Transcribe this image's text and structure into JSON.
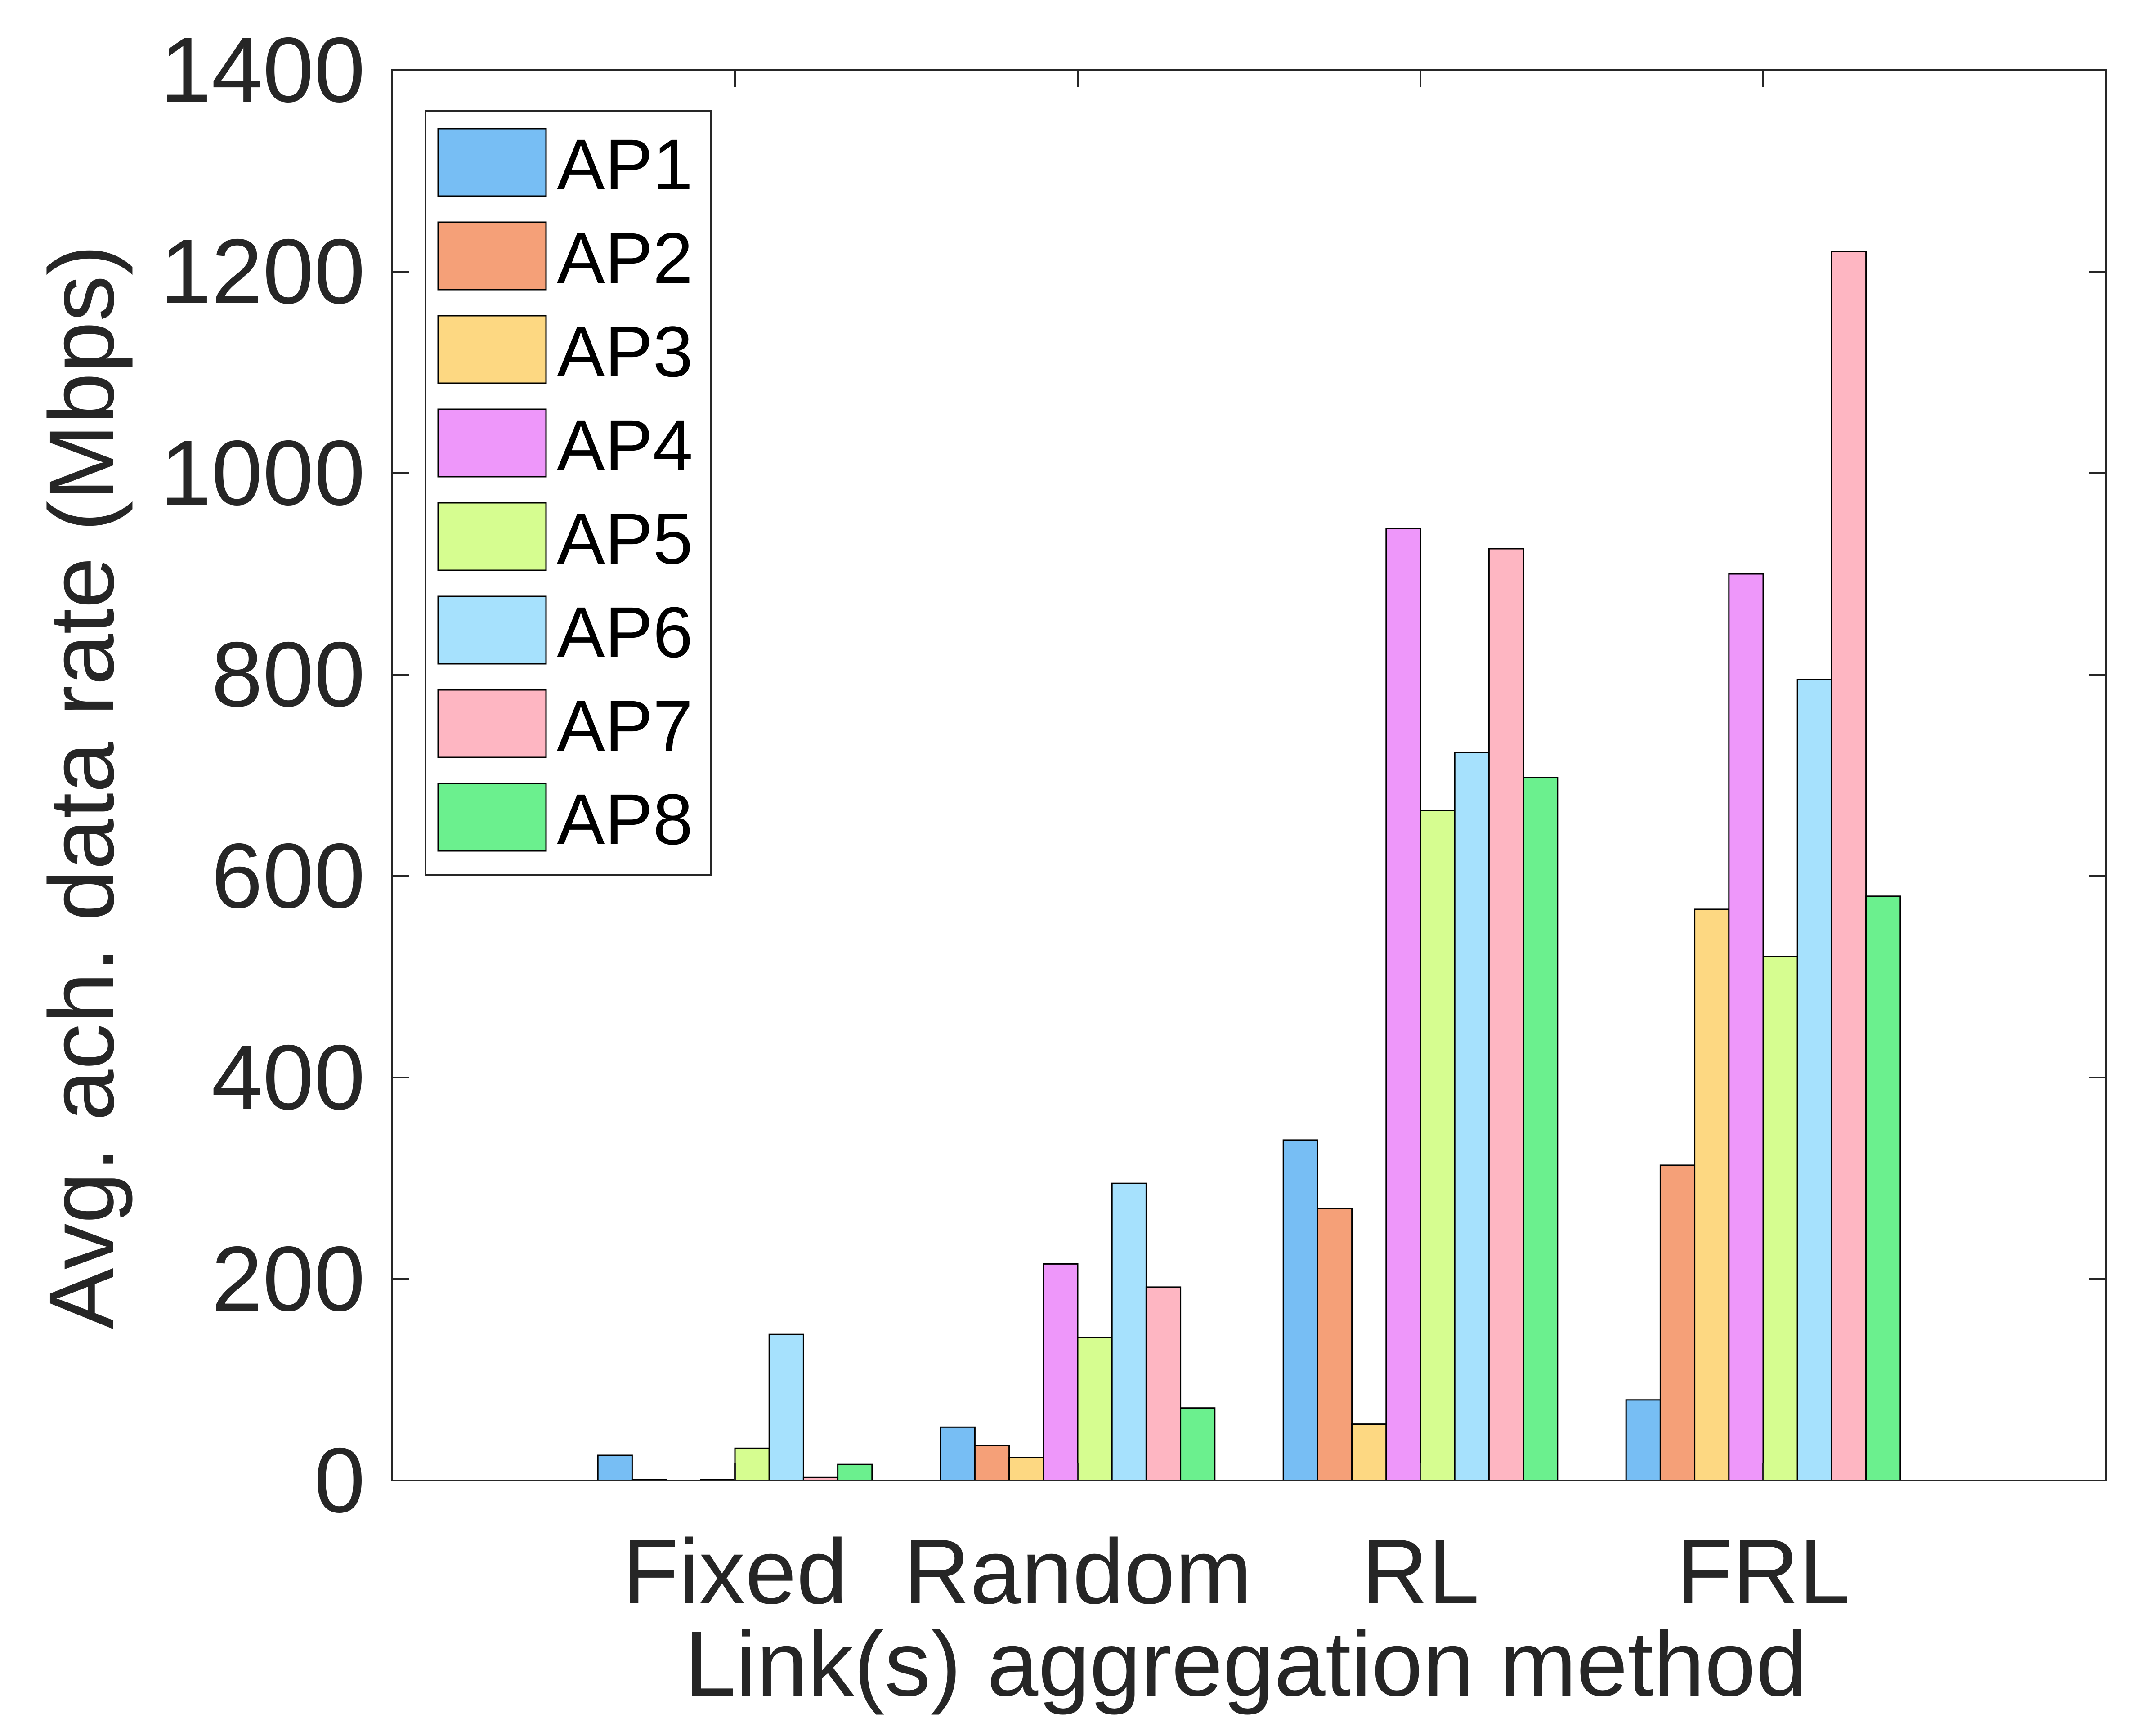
{
  "chart_data": {
    "type": "bar",
    "title": "",
    "xlabel": "Link(s) aggregation method",
    "ylabel": "Avg. ach. data rate (Mbps)",
    "categories": [
      "Fixed",
      "Random",
      "RL",
      "FRL"
    ],
    "ylim": [
      0,
      1400
    ],
    "yticks": [
      0,
      200,
      400,
      600,
      800,
      1000,
      1200,
      1400
    ],
    "grid": false,
    "legend_position": "top-left",
    "series": [
      {
        "name": "AP1",
        "color": "#77bef4",
        "values": [
          25,
          53,
          338,
          80
        ]
      },
      {
        "name": "AP2",
        "color": "#f5a078",
        "values": [
          1,
          35,
          270,
          313
        ]
      },
      {
        "name": "AP3",
        "color": "#fdd882",
        "values": [
          0,
          23,
          56,
          567
        ]
      },
      {
        "name": "AP4",
        "color": "#ee97fa",
        "values": [
          1,
          215,
          945,
          900
        ]
      },
      {
        "name": "AP5",
        "color": "#d6fd90",
        "values": [
          32,
          142,
          665,
          520
        ]
      },
      {
        "name": "AP6",
        "color": "#a6e1fd",
        "values": [
          145,
          295,
          723,
          795
        ]
      },
      {
        "name": "AP7",
        "color": "#feb6c2",
        "values": [
          3,
          192,
          925,
          1220
        ]
      },
      {
        "name": "AP8",
        "color": "#6bf08e",
        "values": [
          16,
          72,
          698,
          580
        ]
      }
    ]
  }
}
